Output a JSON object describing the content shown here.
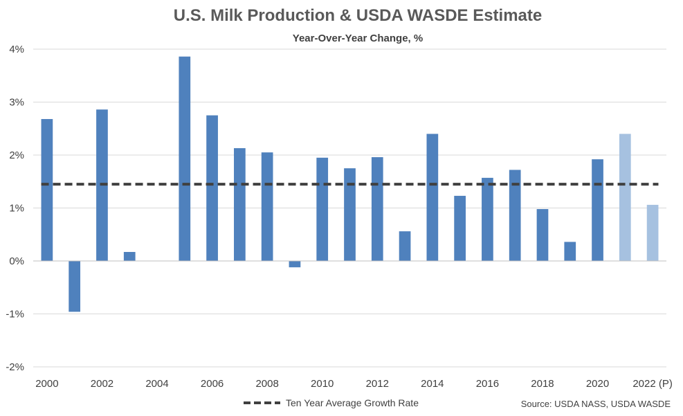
{
  "chart_data": {
    "type": "bar",
    "title": "U.S. Milk Production & USDA WASDE Estimate",
    "subtitle": "Year-Over-Year Change, %",
    "x": [
      "2000",
      "2001",
      "2002",
      "2003",
      "2004",
      "2005",
      "2006",
      "2007",
      "2008",
      "2009",
      "2010",
      "2011",
      "2012",
      "2013",
      "2014",
      "2015",
      "2016",
      "2017",
      "2018",
      "2019",
      "2020",
      "2021",
      "2022 (P)"
    ],
    "x_tick_labels": [
      "2000",
      "2002",
      "2004",
      "2006",
      "2008",
      "2010",
      "2012",
      "2014",
      "2016",
      "2018",
      "2020",
      "2022 (P)"
    ],
    "series": [
      {
        "values": [
          2.68,
          -0.96,
          2.86,
          0.17,
          0.0,
          3.86,
          2.75,
          2.13,
          2.05,
          -0.12,
          1.95,
          1.75,
          1.96,
          0.56,
          2.4,
          1.23,
          1.57,
          1.72,
          0.98,
          0.36,
          1.92,
          2.4,
          1.06
        ],
        "estimate_flags": [
          false,
          false,
          false,
          false,
          false,
          false,
          false,
          false,
          false,
          false,
          false,
          false,
          false,
          false,
          false,
          false,
          false,
          false,
          false,
          false,
          false,
          true,
          true
        ]
      }
    ],
    "reference_line": {
      "name": "Ten Year Average Growth Rate",
      "value": 1.45,
      "style": "dashed"
    },
    "y_ticks": [
      -2,
      -1,
      0,
      1,
      2,
      3,
      4
    ],
    "y_tick_labels": [
      "-2%",
      "-1%",
      "0%",
      "1%",
      "2%",
      "3%",
      "4%"
    ],
    "ylim": [
      -2,
      4
    ],
    "grid": true,
    "legend_position": "bottom",
    "source": "Source: USDA NASS, USDA WASDE",
    "colors": {
      "actual": "#4f81bd",
      "estimate": "#a6c1e0",
      "reference": "#404040",
      "grid": "#d9d9d9"
    }
  }
}
